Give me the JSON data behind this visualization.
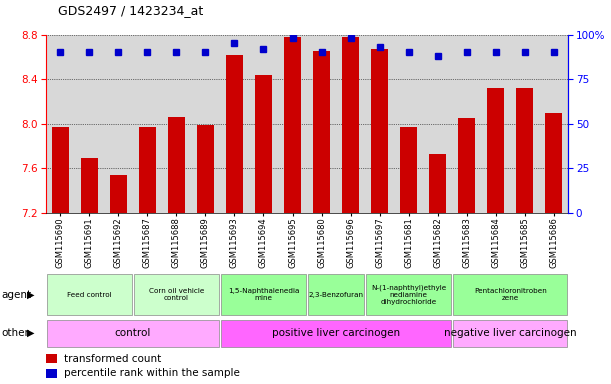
{
  "title": "GDS2497 / 1423234_at",
  "samples": [
    "GSM115690",
    "GSM115691",
    "GSM115692",
    "GSM115687",
    "GSM115688",
    "GSM115689",
    "GSM115693",
    "GSM115694",
    "GSM115695",
    "GSM115680",
    "GSM115696",
    "GSM115697",
    "GSM115681",
    "GSM115682",
    "GSM115683",
    "GSM115684",
    "GSM115685",
    "GSM115686"
  ],
  "bar_values": [
    7.97,
    7.69,
    7.54,
    7.97,
    8.06,
    7.99,
    8.62,
    8.44,
    8.78,
    8.65,
    8.78,
    8.67,
    7.97,
    7.73,
    8.05,
    8.32,
    8.32,
    8.1
  ],
  "percentile_values": [
    90,
    90,
    90,
    90,
    90,
    90,
    95,
    92,
    98,
    90,
    98,
    93,
    90,
    88,
    90,
    90,
    90,
    90
  ],
  "bar_color": "#cc0000",
  "dot_color": "#0000cc",
  "ylim_left": [
    7.2,
    8.8
  ],
  "ylim_right": [
    0,
    100
  ],
  "yticks_left": [
    7.2,
    7.6,
    8.0,
    8.4,
    8.8
  ],
  "yticks_right": [
    0,
    25,
    50,
    75,
    100
  ],
  "agent_groups": [
    {
      "label": "Feed control",
      "start": 0,
      "end": 3,
      "color": "#ccffcc"
    },
    {
      "label": "Corn oil vehicle\ncontrol",
      "start": 3,
      "end": 6,
      "color": "#ccffcc"
    },
    {
      "label": "1,5-Naphthalenedia\nmine",
      "start": 6,
      "end": 9,
      "color": "#99ff99"
    },
    {
      "label": "2,3-Benzofuran",
      "start": 9,
      "end": 11,
      "color": "#99ff99"
    },
    {
      "label": "N-(1-naphthyl)ethyle\nnediamine\ndihydrochloride",
      "start": 11,
      "end": 14,
      "color": "#99ff99"
    },
    {
      "label": "Pentachloronitroben\nzene",
      "start": 14,
      "end": 18,
      "color": "#99ff99"
    }
  ],
  "other_groups": [
    {
      "label": "control",
      "start": 0,
      "end": 6,
      "color": "#ffaaff"
    },
    {
      "label": "positive liver carcinogen",
      "start": 6,
      "end": 14,
      "color": "#ff66ff"
    },
    {
      "label": "negative liver carcinogen",
      "start": 14,
      "end": 18,
      "color": "#ffaaff"
    }
  ],
  "legend_items": [
    {
      "label": "transformed count",
      "color": "#cc0000"
    },
    {
      "label": "percentile rank within the sample",
      "color": "#0000cc"
    }
  ]
}
